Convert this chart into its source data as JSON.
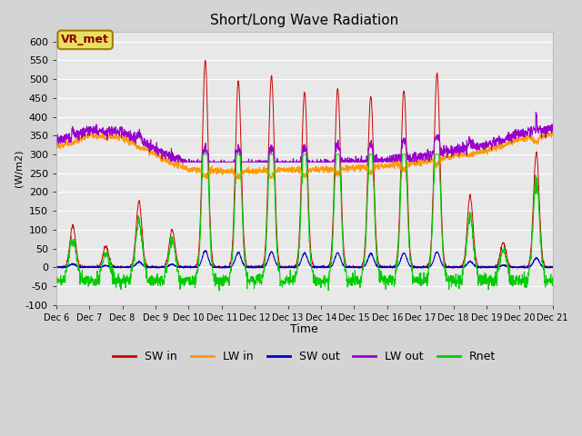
{
  "title": "Short/Long Wave Radiation",
  "ylabel": "(W/m2)",
  "xlabel": "Time",
  "ylim": [
    -100,
    625
  ],
  "yticks": [
    -100,
    -50,
    0,
    50,
    100,
    150,
    200,
    250,
    300,
    350,
    400,
    450,
    500,
    550,
    600
  ],
  "plot_bg_color": "#e8e8e8",
  "fig_bg_color": "#d4d4d4",
  "annotation_text": "VR_met",
  "annotation_bg": "#e8e060",
  "annotation_edge": "#a08000",
  "colors": {
    "SW_in": "#cc0000",
    "LW_in": "#ff9900",
    "SW_out": "#0000cc",
    "LW_out": "#9900cc",
    "Rnet": "#00cc00"
  },
  "n_days": 15,
  "n_per_day": 144
}
